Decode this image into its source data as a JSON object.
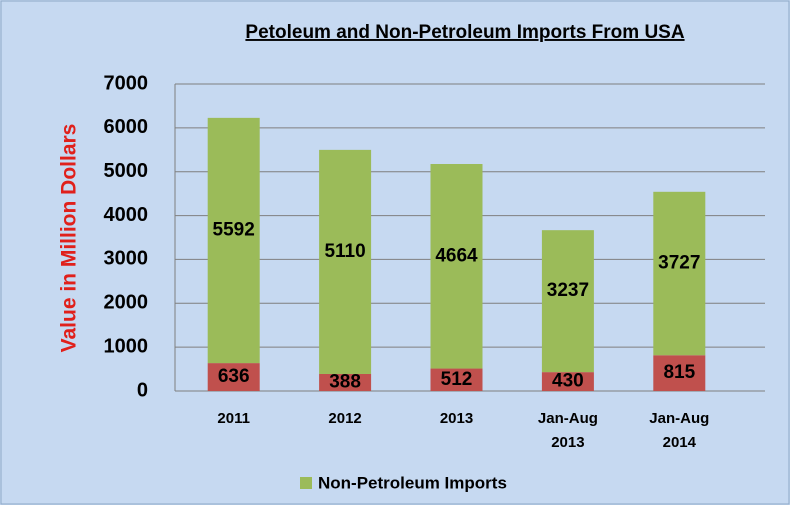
{
  "chart_data": {
    "type": "stacked_bar",
    "title": "Petoleum and Non-Petroleum Imports From USA",
    "y_label": "Value in Million Dollars",
    "categories": [
      "2011",
      "2012",
      "2013",
      "Jan-Aug 2013",
      "Jan-Aug 2014"
    ],
    "series": [
      {
        "color": "#c0504d",
        "values": [
          636,
          388,
          512,
          430,
          815
        ]
      },
      {
        "name": "Non-Petroleum Imports",
        "color": "#9bbb59",
        "values": [
          5592,
          5110,
          4664,
          3237,
          3727
        ]
      }
    ],
    "ylim": [
      0,
      7000
    ],
    "yticks": [
      0,
      1000,
      2000,
      3000,
      4000,
      5000,
      6000,
      7000
    ],
    "grid": true,
    "legend": "bottom"
  }
}
